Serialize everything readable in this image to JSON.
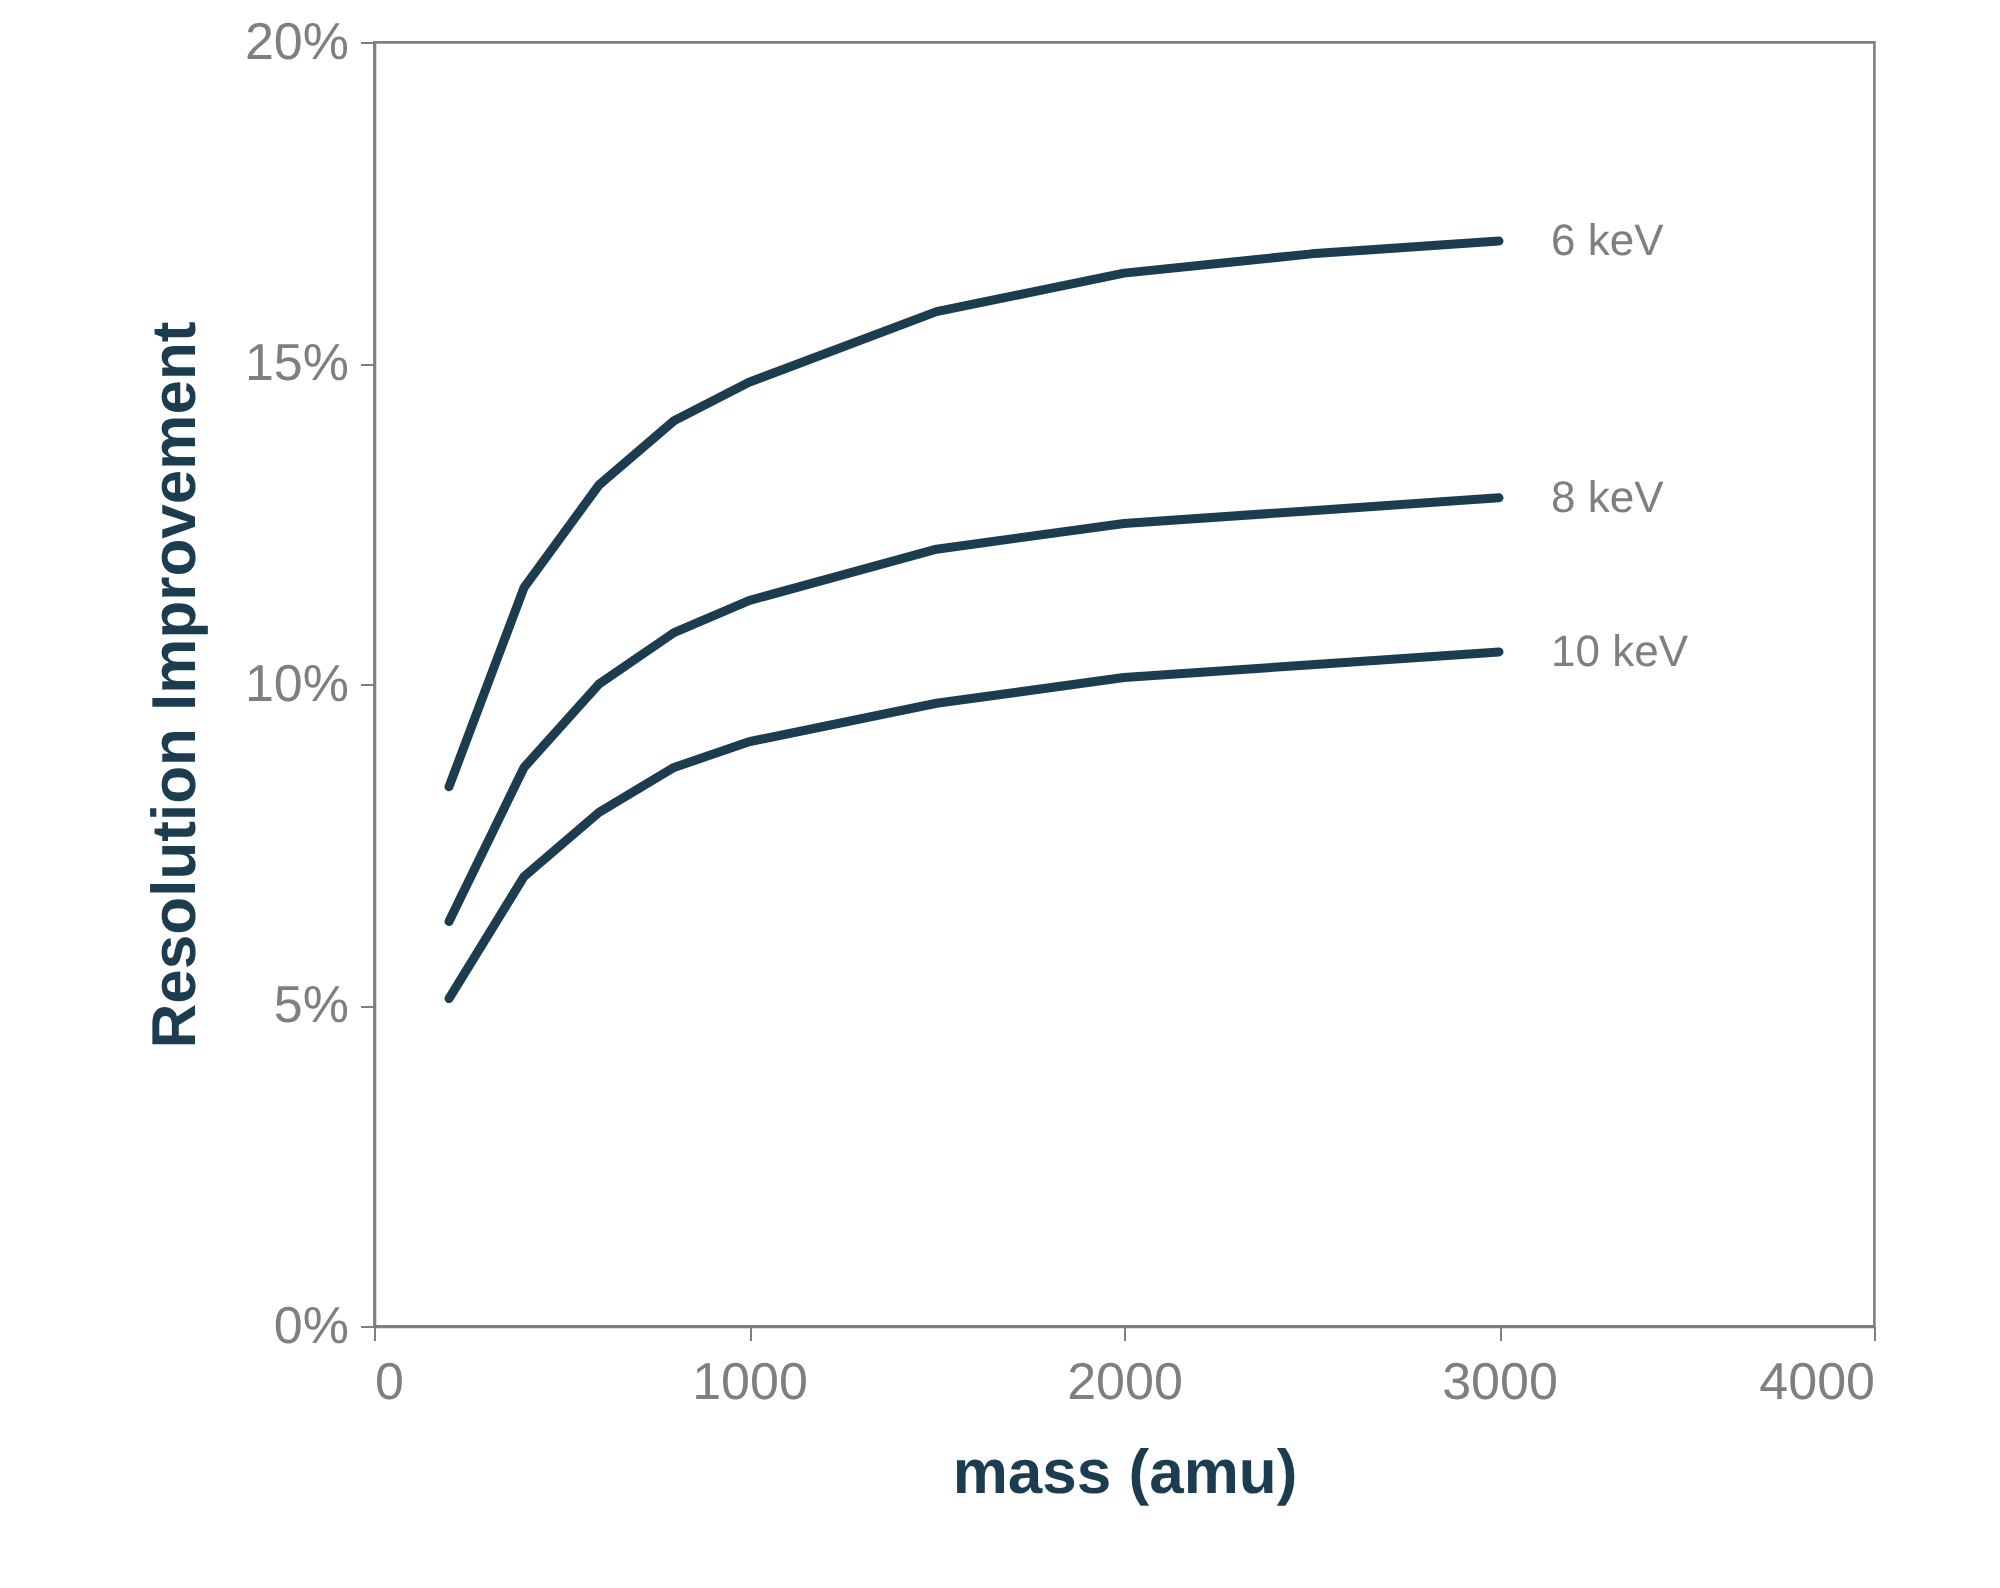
{
  "chart_data": {
    "type": "line",
    "xlabel": "mass (amu)",
    "ylabel": "Resolution Improvement",
    "xlim": [
      0,
      4000
    ],
    "xticks": [
      0,
      1000,
      2000,
      3000,
      4000
    ],
    "ylim": [
      0,
      20
    ],
    "yticks": [
      {
        "value": 0,
        "label": "0%"
      },
      {
        "value": 5,
        "label": "5%"
      },
      {
        "value": 10,
        "label": "10%"
      },
      {
        "value": 15,
        "label": "15%"
      },
      {
        "value": 20,
        "label": "20%"
      }
    ],
    "grid": false,
    "legend": false,
    "marker": "none",
    "line_style": "solid",
    "series": [
      {
        "name": "6 keV",
        "color": "#1b3d4f",
        "x": [
          200,
          400,
          600,
          800,
          1000,
          1500,
          2000,
          2500,
          3000
        ],
        "values": [
          8.4,
          11.5,
          13.1,
          14.1,
          14.7,
          15.8,
          16.4,
          16.7,
          16.9
        ]
      },
      {
        "name": "8 keV",
        "color": "#1b3d4f",
        "x": [
          200,
          400,
          600,
          800,
          1000,
          1500,
          2000,
          2500,
          3000
        ],
        "values": [
          6.3,
          8.7,
          10.0,
          10.8,
          11.3,
          12.1,
          12.5,
          12.7,
          12.9
        ]
      },
      {
        "name": "10 keV",
        "color": "#1b3d4f",
        "x": [
          200,
          400,
          600,
          800,
          1000,
          1500,
          2000,
          2500,
          3000
        ],
        "values": [
          5.1,
          7.0,
          8.0,
          8.7,
          9.1,
          9.7,
          10.1,
          10.3,
          10.5
        ]
      }
    ]
  }
}
